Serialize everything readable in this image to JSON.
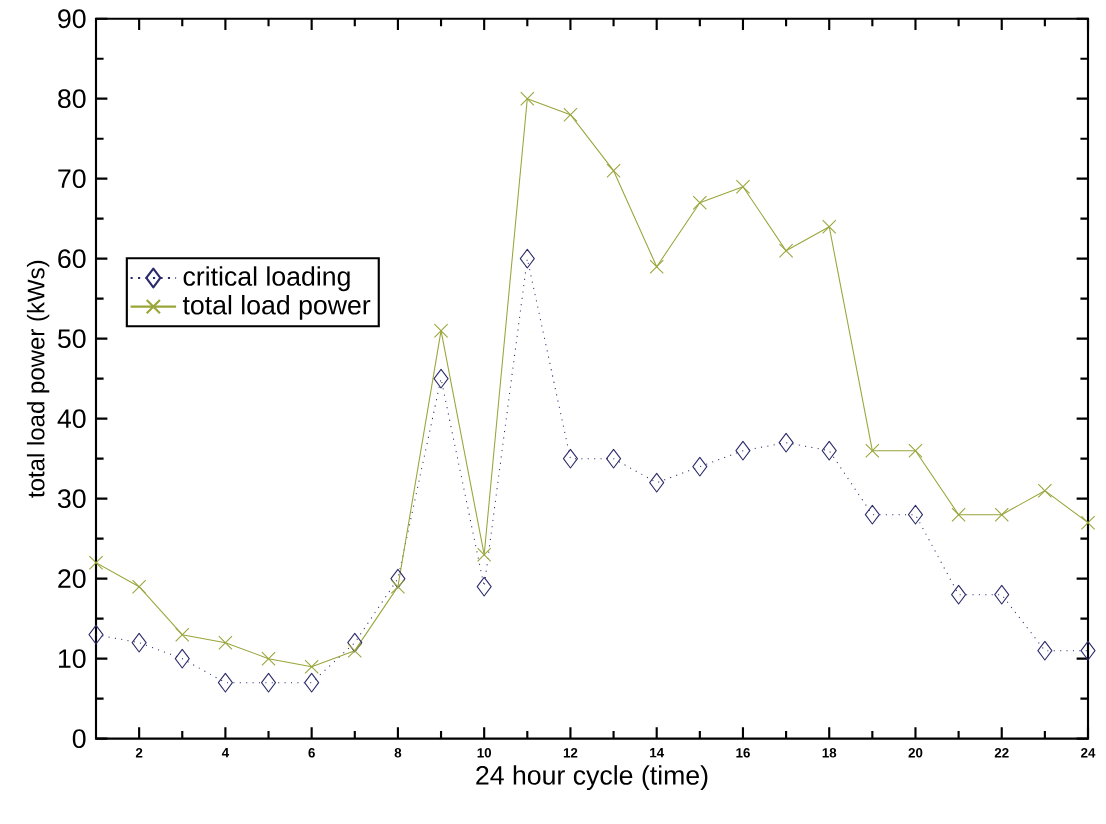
{
  "chart_data": {
    "type": "line",
    "xlabel": "24 hour cycle (time)",
    "ylabel": "total load power (kWs)",
    "x": [
      1,
      2,
      3,
      4,
      5,
      6,
      7,
      8,
      9,
      10,
      11,
      12,
      13,
      14,
      15,
      16,
      17,
      18,
      19,
      20,
      21,
      22,
      23,
      24
    ],
    "series": [
      {
        "name": "critical loading",
        "color": "#2b2b6b",
        "marker": "diamond",
        "line_style": "dotted",
        "values": [
          13,
          12,
          10,
          7,
          7,
          7,
          12,
          20,
          45,
          19,
          60,
          35,
          35,
          32,
          34,
          36,
          37,
          36,
          28,
          28,
          18,
          18,
          11,
          11
        ]
      },
      {
        "name": "total load power",
        "color": "#9aa53a",
        "marker": "cross",
        "line_style": "solid",
        "values": [
          22,
          19,
          13,
          12,
          10,
          9,
          11,
          19,
          51,
          23,
          80,
          78,
          71,
          59,
          67,
          69,
          61,
          64,
          36,
          36,
          28,
          28,
          31,
          27
        ]
      }
    ],
    "xlim": [
      1,
      24
    ],
    "ylim": [
      0,
      90
    ],
    "xticks": [
      2,
      4,
      6,
      8,
      10,
      12,
      14,
      16,
      18,
      20,
      22,
      24
    ],
    "yticks": [
      0,
      10,
      20,
      30,
      40,
      50,
      60,
      70,
      80,
      90
    ],
    "grid": false,
    "legend": "left"
  }
}
